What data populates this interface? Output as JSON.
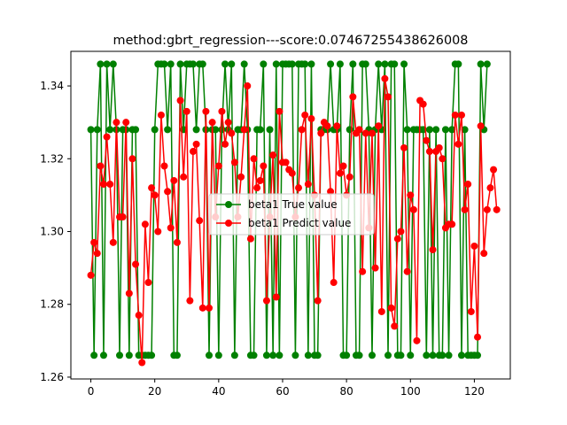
{
  "chart_data": {
    "type": "line",
    "title": "method:gbrt_regression---score:0.07467255438626008",
    "xlabel": "",
    "ylabel": "",
    "xlim": [
      -6.25,
      131.25
    ],
    "ylim": [
      1.2595,
      1.3495
    ],
    "x_ticks": [
      0,
      20,
      40,
      60,
      80,
      100,
      120
    ],
    "x_tick_labels": [
      "0",
      "20",
      "40",
      "60",
      "80",
      "100",
      "120"
    ],
    "y_ticks": [
      1.26,
      1.28,
      1.3,
      1.32,
      1.34
    ],
    "y_tick_labels": [
      "1.26",
      "1.28",
      "1.30",
      "1.32",
      "1.34"
    ],
    "grid": false,
    "legend_position": "center",
    "series": [
      {
        "name": "beta1 True value",
        "color": "#008000",
        "values": [
          1.328,
          1.266,
          1.328,
          1.346,
          1.266,
          1.346,
          1.328,
          1.346,
          1.328,
          1.266,
          1.328,
          1.328,
          1.266,
          1.328,
          1.328,
          1.266,
          1.266,
          1.266,
          1.266,
          1.266,
          1.328,
          1.346,
          1.346,
          1.346,
          1.328,
          1.346,
          1.266,
          1.266,
          1.346,
          1.328,
          1.346,
          1.346,
          1.346,
          1.328,
          1.346,
          1.346,
          1.328,
          1.266,
          1.328,
          1.328,
          1.266,
          1.328,
          1.346,
          1.328,
          1.346,
          1.266,
          1.328,
          1.328,
          1.346,
          1.328,
          1.266,
          1.266,
          1.328,
          1.328,
          1.346,
          1.266,
          1.328,
          1.266,
          1.346,
          1.266,
          1.346,
          1.346,
          1.346,
          1.346,
          1.266,
          1.346,
          1.346,
          1.346,
          1.266,
          1.346,
          1.266,
          1.266,
          1.328,
          1.328,
          1.328,
          1.346,
          1.328,
          1.328,
          1.346,
          1.266,
          1.266,
          1.328,
          1.346,
          1.266,
          1.266,
          1.346,
          1.346,
          1.328,
          1.266,
          1.328,
          1.346,
          1.328,
          1.346,
          1.266,
          1.346,
          1.346,
          1.266,
          1.266,
          1.346,
          1.328,
          1.266,
          1.328,
          1.328,
          1.328,
          1.328,
          1.266,
          1.328,
          1.266,
          1.328,
          1.266,
          1.266,
          1.328,
          1.266,
          1.328,
          1.346,
          1.346,
          1.266,
          1.328,
          1.266,
          1.266,
          1.266,
          1.266,
          1.346,
          1.328,
          1.346
        ]
      },
      {
        "name": "beta1 Predict value",
        "color": "#ff0000",
        "values": [
          1.288,
          1.297,
          1.294,
          1.318,
          1.313,
          1.326,
          1.313,
          1.297,
          1.33,
          1.304,
          1.304,
          1.33,
          1.283,
          1.32,
          1.291,
          1.277,
          1.264,
          1.302,
          1.286,
          1.312,
          1.31,
          1.3,
          1.332,
          1.318,
          1.311,
          1.301,
          1.314,
          1.297,
          1.336,
          1.315,
          1.333,
          1.281,
          1.322,
          1.324,
          1.303,
          1.279,
          1.333,
          1.279,
          1.33,
          1.304,
          1.318,
          1.333,
          1.324,
          1.33,
          1.327,
          1.319,
          1.304,
          1.315,
          1.328,
          1.34,
          1.298,
          1.32,
          1.312,
          1.314,
          1.318,
          1.281,
          1.304,
          1.321,
          1.282,
          1.333,
          1.319,
          1.319,
          1.317,
          1.316,
          1.304,
          1.312,
          1.328,
          1.332,
          1.313,
          1.331,
          1.31,
          1.281,
          1.327,
          1.33,
          1.329,
          1.311,
          1.286,
          1.329,
          1.316,
          1.318,
          1.31,
          1.315,
          1.337,
          1.327,
          1.328,
          1.289,
          1.327,
          1.301,
          1.327,
          1.29,
          1.329,
          1.278,
          1.342,
          1.337,
          1.279,
          1.274,
          1.298,
          1.3,
          1.323,
          1.289,
          1.31,
          1.306,
          1.27,
          1.336,
          1.335,
          1.325,
          1.322,
          1.295,
          1.322,
          1.323,
          1.32,
          1.301,
          1.302,
          1.302,
          1.332,
          1.324,
          1.332,
          1.306,
          1.313,
          1.278,
          1.296,
          1.271,
          1.329,
          1.294,
          1.306,
          1.312,
          1.317,
          1.306
        ]
      }
    ]
  }
}
